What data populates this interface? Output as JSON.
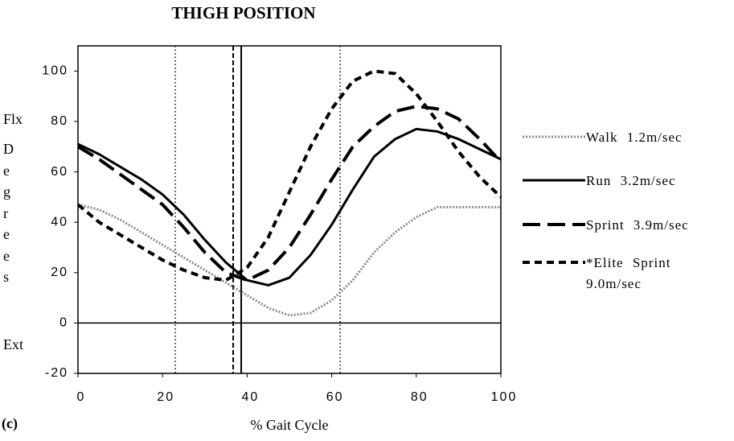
{
  "chart_data": {
    "type": "line",
    "title": "THIGH POSITION",
    "panel_label": "(c)",
    "xlabel": "% Gait Cycle",
    "ylabel": "Degrees",
    "ylabel_top": "Flx",
    "ylabel_bottom": "Ext",
    "x": [
      0,
      5,
      10,
      15,
      20,
      25,
      30,
      35,
      40,
      45,
      50,
      55,
      60,
      65,
      70,
      75,
      80,
      85,
      90,
      95,
      100
    ],
    "series": [
      {
        "name": "Walk 1.2m/sec",
        "color": "#8a8a8a",
        "style": "dotted",
        "values": [
          47,
          45,
          41,
          36,
          31,
          26,
          21,
          16,
          11,
          6,
          3,
          4,
          9,
          17,
          28,
          36,
          42,
          46,
          46,
          46,
          46
        ]
      },
      {
        "name": "Run 3.2m/sec",
        "color": "#000000",
        "style": "solid",
        "values": [
          71,
          67,
          62,
          57,
          51,
          43,
          33,
          24,
          17,
          15,
          18,
          27,
          39,
          53,
          66,
          73,
          77,
          76,
          73,
          69,
          65
        ]
      },
      {
        "name": "Sprint 3.9m/sec",
        "color": "#000000",
        "style": "long-dash",
        "values": [
          70,
          65,
          59,
          53,
          47,
          38,
          28,
          20,
          17,
          21,
          30,
          43,
          57,
          70,
          78,
          84,
          86,
          85,
          81,
          73,
          64
        ]
      },
      {
        "name": "*Elite Sprint 9.0m/sec",
        "color": "#000000",
        "style": "short-dash",
        "values": [
          47,
          40,
          35,
          30,
          25,
          21,
          18,
          17,
          22,
          34,
          52,
          70,
          85,
          96,
          100,
          99,
          91,
          80,
          68,
          58,
          50
        ]
      }
    ],
    "markers": [
      {
        "x": 23,
        "style": "dotted"
      },
      {
        "x": 62,
        "style": "dotted"
      },
      {
        "x": 36.7,
        "style": "short-dash"
      },
      {
        "x": 38.6,
        "style": "solid"
      }
    ],
    "xlim": [
      0,
      100
    ],
    "xticks": [
      0,
      20,
      40,
      60,
      80,
      100
    ],
    "ylim": [
      -20,
      110
    ],
    "yticks": [
      -20,
      0,
      20,
      40,
      60,
      80,
      100
    ],
    "zero_line": true,
    "grid": false
  }
}
